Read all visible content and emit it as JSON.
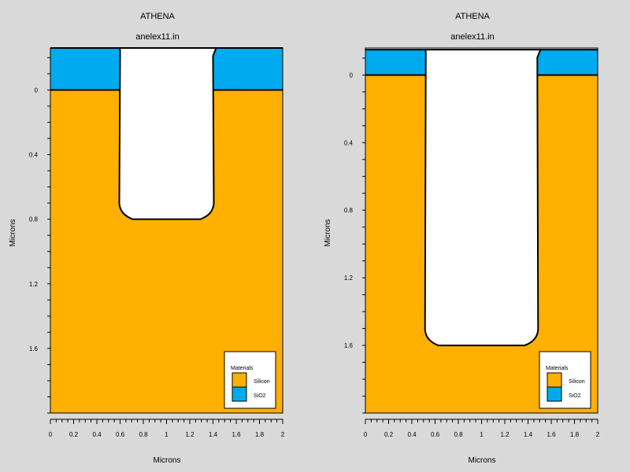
{
  "colors": {
    "background": "#d9d9d9",
    "silicon": "#ffb000",
    "sio2": "#00aaee",
    "void": "#ffffff",
    "outline": "#000000"
  },
  "panels": [
    {
      "title": "ATHENA",
      "subtitle": "anelex11.in",
      "xlabel": "Microns",
      "ylabel": "Microns",
      "xlim": [
        0,
        2
      ],
      "ylim": [
        -0.26,
        2.0
      ],
      "x_ticks": [
        "0",
        "0.2",
        "0.4",
        "0.6",
        "0.8",
        "1",
        "1.2",
        "1.4",
        "1.6",
        "1.8",
        "2"
      ],
      "y_ticks": [
        "0",
        "0.4",
        "0.8",
        "1.2",
        "1.6"
      ],
      "oxide_top": -0.26,
      "silicon_top": 0.0,
      "trench_left_x": 0.6,
      "trench_right_x": 1.4,
      "trench_depth": 0.8,
      "legend": {
        "title": "Materials",
        "items": [
          {
            "label": "Silicon",
            "color": "#ffb000"
          },
          {
            "label": "SiO2",
            "color": "#00aaee"
          }
        ]
      }
    },
    {
      "title": "ATHENA",
      "subtitle": "anelex11.in",
      "xlabel": "Microns",
      "ylabel": "Microns",
      "xlim": [
        0,
        2
      ],
      "ylim": [
        -0.16,
        2.0
      ],
      "x_ticks": [
        "0",
        "0.2",
        "0.4",
        "0.6",
        "0.8",
        "1",
        "1.2",
        "1.4",
        "1.6",
        "1.8",
        "2"
      ],
      "y_ticks": [
        "0",
        "0.4",
        "0.8",
        "1.2",
        "1.6"
      ],
      "oxide_top": -0.15,
      "silicon_top": 0.0,
      "trench_left_x": 0.52,
      "trench_right_x": 1.48,
      "trench_depth": 1.6,
      "legend": {
        "title": "Materials",
        "items": [
          {
            "label": "Silicon",
            "color": "#ffb000"
          },
          {
            "label": "SiO2",
            "color": "#00aaee"
          }
        ]
      }
    }
  ]
}
